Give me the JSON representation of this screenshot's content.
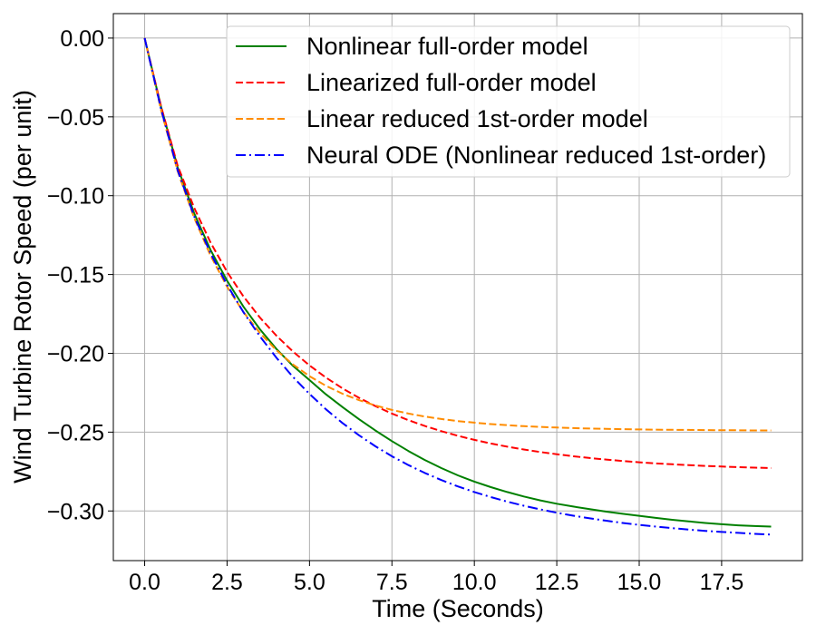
{
  "chart_data": {
    "type": "line",
    "title": "",
    "xlabel": "Time (Seconds)",
    "ylabel": "Wind Turbine Rotor Speed (per unit)",
    "xlim": [
      -0.95,
      19.95
    ],
    "ylim": [
      -0.3315,
      0.0155
    ],
    "xticks": [
      0,
      2.5,
      5,
      7.5,
      10,
      12.5,
      15,
      17.5
    ],
    "xtick_labels": [
      "0.0",
      "2.5",
      "5.0",
      "7.5",
      "10.0",
      "12.5",
      "15.0",
      "17.5"
    ],
    "yticks": [
      0,
      -0.05,
      -0.1,
      -0.15,
      -0.2,
      -0.25,
      -0.3
    ],
    "ytick_labels": [
      "0.00",
      "−0.05",
      "−0.10",
      "−0.15",
      "−0.20",
      "−0.25",
      "−0.30"
    ],
    "grid": true,
    "legend_position": "top-right",
    "x": [
      0,
      0.5,
      1,
      1.5,
      2,
      2.5,
      3,
      3.5,
      4,
      4.5,
      5,
      5.5,
      6,
      6.5,
      7,
      7.5,
      8,
      8.5,
      9,
      9.5,
      10,
      10.5,
      11,
      11.5,
      12,
      12.5,
      13,
      13.5,
      14,
      14.5,
      15,
      15.5,
      16,
      16.5,
      17,
      17.5,
      18,
      18.5,
      19
    ],
    "series": [
      {
        "name": "Nonlinear full-order model",
        "color": "#008000",
        "dash": "solid",
        "values": [
          0,
          -0.0438,
          -0.0819,
          -0.1111,
          -0.1345,
          -0.154,
          -0.1705,
          -0.1848,
          -0.1973,
          -0.208,
          -0.217,
          -0.226,
          -0.2341,
          -0.2418,
          -0.249,
          -0.2557,
          -0.262,
          -0.2677,
          -0.2728,
          -0.2774,
          -0.2814,
          -0.2849,
          -0.288,
          -0.2908,
          -0.2933,
          -0.2954,
          -0.2972,
          -0.2989,
          -0.3004,
          -0.3018,
          -0.3031,
          -0.3044,
          -0.3056,
          -0.3066,
          -0.3076,
          -0.3084,
          -0.3091,
          -0.3096,
          -0.3099
        ]
      },
      {
        "name": "Linearized full-order model",
        "color": "#ff0000",
        "dash": "dashed",
        "values": [
          0,
          -0.0434,
          -0.0809,
          -0.1076,
          -0.1298,
          -0.1484,
          -0.164,
          -0.1774,
          -0.1889,
          -0.1989,
          -0.2077,
          -0.2154,
          -0.2222,
          -0.2282,
          -0.2335,
          -0.2382,
          -0.2424,
          -0.2461,
          -0.2494,
          -0.2523,
          -0.2549,
          -0.2572,
          -0.2592,
          -0.261,
          -0.2626,
          -0.264,
          -0.2653,
          -0.2664,
          -0.2674,
          -0.2683,
          -0.2691,
          -0.2698,
          -0.2704,
          -0.2709,
          -0.2714,
          -0.2718,
          -0.2722,
          -0.2725,
          -0.2728
        ]
      },
      {
        "name": "Linear reduced 1st-order model",
        "color": "#ff8c00",
        "dash": "dashed",
        "values": [
          0,
          -0.0459,
          -0.0844,
          -0.114,
          -0.1381,
          -0.1578,
          -0.1739,
          -0.1872,
          -0.1981,
          -0.2071,
          -0.2145,
          -0.2206,
          -0.2256,
          -0.2297,
          -0.2331,
          -0.2359,
          -0.2382,
          -0.2401,
          -0.2417,
          -0.243,
          -0.244,
          -0.2449,
          -0.2456,
          -0.2462,
          -0.2467,
          -0.2471,
          -0.2474,
          -0.2477,
          -0.2479,
          -0.2481,
          -0.2483,
          -0.2484,
          -0.2485,
          -0.2486,
          -0.2487,
          -0.2488,
          -0.2488,
          -0.2489,
          -0.2489
        ]
      },
      {
        "name": "Neural ODE (Nonlinear reduced 1st-order)",
        "color": "#0000ff",
        "dash": "dashdot",
        "values": [
          0,
          -0.0452,
          -0.0838,
          -0.113,
          -0.1366,
          -0.1566,
          -0.174,
          -0.1893,
          -0.2029,
          -0.215,
          -0.2258,
          -0.2355,
          -0.2442,
          -0.252,
          -0.259,
          -0.2653,
          -0.2709,
          -0.2759,
          -0.2804,
          -0.2844,
          -0.288,
          -0.2912,
          -0.2941,
          -0.2967,
          -0.299,
          -0.3011,
          -0.303,
          -0.3047,
          -0.3062,
          -0.3076,
          -0.3088,
          -0.3099,
          -0.3109,
          -0.3118,
          -0.3126,
          -0.3133,
          -0.3139,
          -0.3145,
          -0.315
        ]
      }
    ]
  }
}
